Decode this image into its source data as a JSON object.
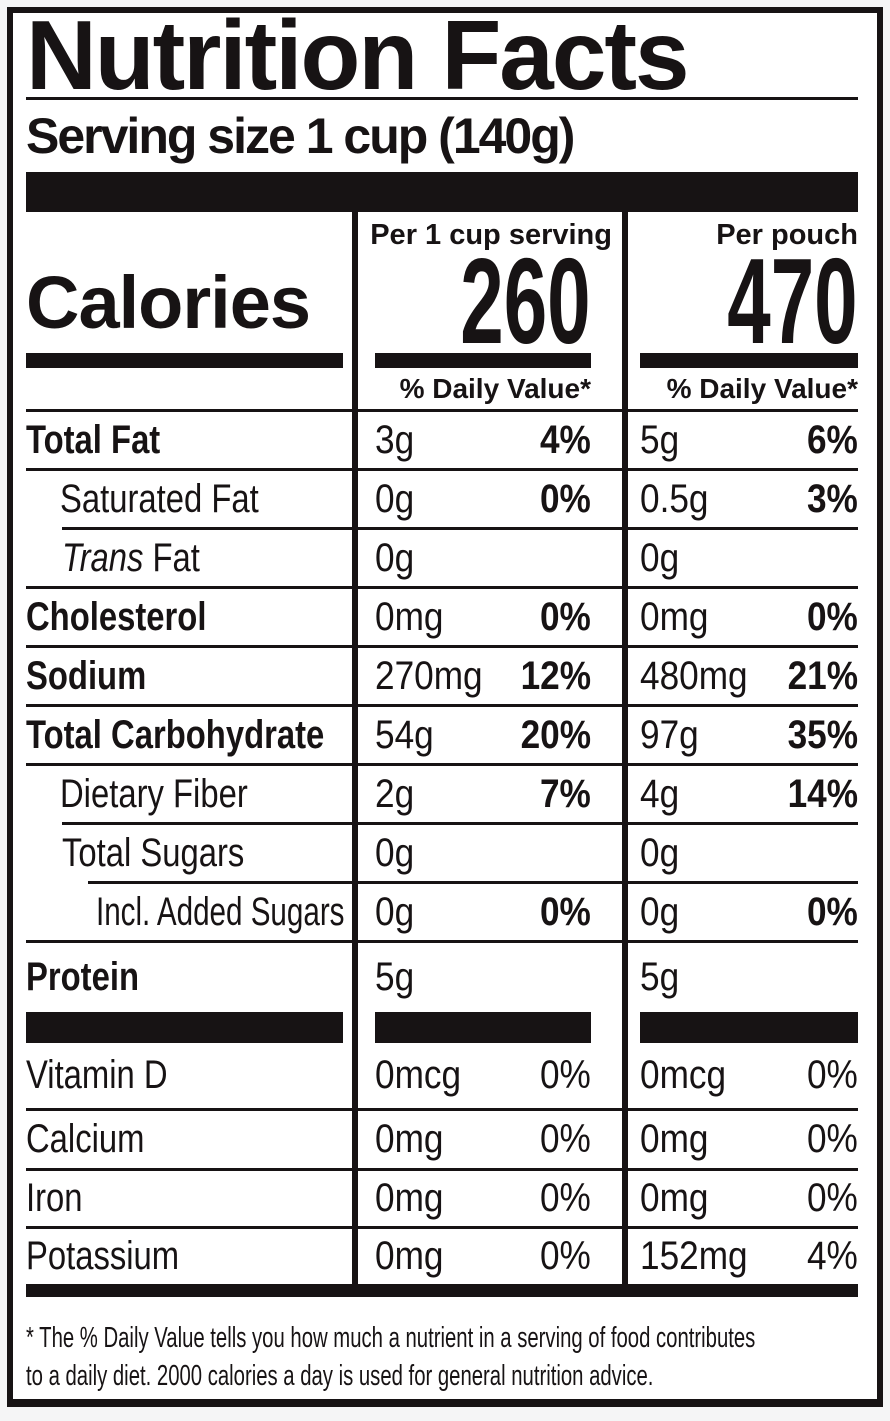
{
  "title": "Nutrition Facts",
  "serving_size": "Serving size 1 cup (140g)",
  "colors": {
    "ink": "#171314",
    "paper": "#ffffff",
    "page_background": "#f5f5f6"
  },
  "calories": {
    "label": "Calories",
    "col1": {
      "header": "Per 1 cup serving",
      "value": "260"
    },
    "col2": {
      "header": "Per pouch",
      "value": "470"
    }
  },
  "daily_value_header": "% Daily Value*",
  "nutrients": [
    {
      "label": "Total Fat",
      "col1_amount": "3g",
      "col1_dv": "4%",
      "col2_amount": "5g",
      "col2_dv": "6%"
    },
    {
      "label": "Saturated Fat",
      "col1_amount": "0g",
      "col1_dv": "0%",
      "col2_amount": "0.5g",
      "col2_dv": "3%"
    },
    {
      "label_italic": "Trans",
      "label": " Fat",
      "col1_amount": "0g",
      "col1_dv": "",
      "col2_amount": "0g",
      "col2_dv": ""
    },
    {
      "label": "Cholesterol",
      "col1_amount": "0mg",
      "col1_dv": "0%",
      "col2_amount": "0mg",
      "col2_dv": "0%"
    },
    {
      "label": "Sodium",
      "col1_amount": "270mg",
      "col1_dv": "12%",
      "col2_amount": "480mg",
      "col2_dv": "21%"
    },
    {
      "label": "Total Carbohydrate",
      "col1_amount": "54g",
      "col1_dv": "20%",
      "col2_amount": "97g",
      "col2_dv": "35%"
    },
    {
      "label": "Dietary Fiber",
      "col1_amount": "2g",
      "col1_dv": "7%",
      "col2_amount": "4g",
      "col2_dv": "14%"
    },
    {
      "label": "Total Sugars",
      "col1_amount": "0g",
      "col1_dv": "",
      "col2_amount": "0g",
      "col2_dv": ""
    },
    {
      "label": "Incl. Added Sugars",
      "col1_amount": "0g",
      "col1_dv": "0%",
      "col2_amount": "0g",
      "col2_dv": "0%"
    },
    {
      "label": "Protein",
      "col1_amount": "5g",
      "col1_dv": "",
      "col2_amount": "5g",
      "col2_dv": ""
    }
  ],
  "vitamins": [
    {
      "label": "Vitamin D",
      "col1_amount": "0mcg",
      "col1_dv": "0%",
      "col2_amount": "0mcg",
      "col2_dv": "0%"
    },
    {
      "label": "Calcium",
      "col1_amount": "0mg",
      "col1_dv": "0%",
      "col2_amount": "0mg",
      "col2_dv": "0%"
    },
    {
      "label": "Iron",
      "col1_amount": "0mg",
      "col1_dv": "0%",
      "col2_amount": "0mg",
      "col2_dv": "0%"
    },
    {
      "label": "Potassium",
      "col1_amount": "0mg",
      "col1_dv": "0%",
      "col2_amount": "152mg",
      "col2_dv": "4%"
    }
  ],
  "footnote": {
    "line1": "* The % Daily Value tells you how much a nutrient in a serving of food contributes",
    "line2": "to a daily diet. 2000 calories a day is used for general nutrition advice."
  }
}
